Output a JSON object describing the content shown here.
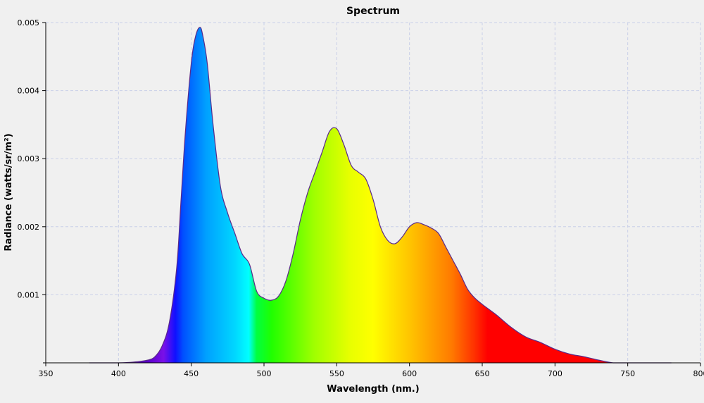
{
  "chart_data": {
    "type": "area",
    "title": "Spectrum",
    "xlabel": "Wavelength (nm.)",
    "ylabel": "Radiance (watts/sr/m²)",
    "xlim": [
      350,
      800
    ],
    "ylim": [
      0,
      0.005
    ],
    "grid": true,
    "legend": "none",
    "x_ticks": [
      350,
      400,
      450,
      500,
      550,
      600,
      650,
      700,
      750,
      800
    ],
    "x_tick_labels": [
      "350",
      "400",
      "450",
      "500",
      "550",
      "600",
      "650",
      "700",
      "750",
      "800"
    ],
    "y_ticks": [
      0.001,
      0.002,
      0.003,
      0.004,
      0.005
    ],
    "y_tick_labels": [
      "0.001",
      "0.002",
      "0.003",
      "0.004",
      "0.005"
    ],
    "series": [
      {
        "x": [
          380,
          400,
          410,
          420,
          425,
          430,
          435,
          440,
          443,
          446,
          450,
          453,
          456,
          458,
          461,
          465,
          470,
          475,
          480,
          485,
          490,
          495,
          500,
          505,
          510,
          515,
          520,
          525,
          530,
          535,
          540,
          545,
          550,
          555,
          560,
          565,
          570,
          575,
          580,
          585,
          590,
          595,
          600,
          605,
          610,
          615,
          620,
          625,
          630,
          635,
          640,
          645,
          650,
          655,
          660,
          670,
          680,
          690,
          700,
          710,
          720,
          730,
          740,
          750,
          760,
          770,
          780
        ],
        "y": [
          0.0,
          0.0,
          1e-05,
          4e-05,
          9e-05,
          0.00025,
          0.0006,
          0.0014,
          0.0024,
          0.0034,
          0.0044,
          0.0048,
          0.00493,
          0.0048,
          0.0044,
          0.0035,
          0.0026,
          0.0022,
          0.0019,
          0.0016,
          0.00145,
          0.00105,
          0.00095,
          0.00092,
          0.00098,
          0.0012,
          0.0016,
          0.0021,
          0.0025,
          0.0028,
          0.0031,
          0.0034,
          0.00344,
          0.0032,
          0.0029,
          0.0028,
          0.0027,
          0.0024,
          0.002,
          0.0018,
          0.00175,
          0.00185,
          0.002,
          0.00206,
          0.00203,
          0.00198,
          0.0019,
          0.0017,
          0.0015,
          0.0013,
          0.00108,
          0.00095,
          0.00086,
          0.00078,
          0.0007,
          0.00052,
          0.00038,
          0.0003,
          0.0002,
          0.00013,
          9e-05,
          4e-05,
          0.0,
          0.0,
          0.0,
          0.0,
          0.0
        ]
      }
    ],
    "colors": {
      "outline": "#5a2a8a",
      "grid": "#c9d0e8",
      "axis": "#000000",
      "background": "#f0f0f0"
    }
  }
}
